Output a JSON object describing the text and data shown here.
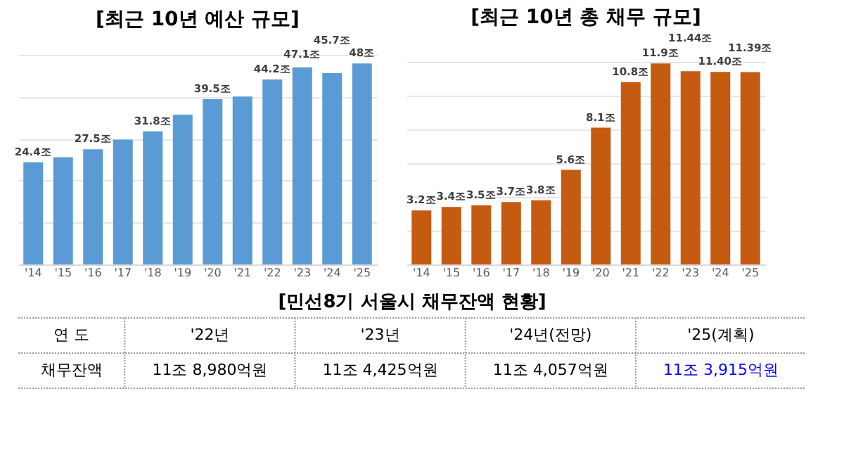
{
  "chart_data": [
    {
      "type": "bar",
      "title": "[최근 10년 예산 규모]",
      "categories": [
        "'14",
        "'15",
        "'16",
        "'17",
        "'18",
        "'19",
        "'20",
        "'21",
        "'22",
        "'23",
        "'24",
        "'25"
      ],
      "values": [
        24.4,
        25.6,
        27.5,
        29.8,
        31.8,
        35.8,
        39.5,
        40.1,
        44.2,
        47.1,
        45.7,
        48
      ],
      "value_labels": [
        "24.4조",
        null,
        "27.5조",
        null,
        "31.8조",
        null,
        "39.5조",
        null,
        "44.2조",
        "47.1조",
        "45.7조",
        "48조"
      ],
      "color": "#5b9bd5",
      "grid": "y",
      "tick_labels": "x"
    },
    {
      "type": "bar",
      "title": "[최근 10년 총 채무 규모]",
      "categories": [
        "'14",
        "'15",
        "'16",
        "'17",
        "'18",
        "'19",
        "'20",
        "'21",
        "'22",
        "'23",
        "'24",
        "'25"
      ],
      "values": [
        3.2,
        3.4,
        3.5,
        3.7,
        3.8,
        5.6,
        8.1,
        10.8,
        11.9,
        11.44,
        11.4,
        11.39
      ],
      "value_labels": [
        "3.2조",
        "3.4조",
        "3.5조",
        "3.7조",
        "3.8조",
        "5.6조",
        "8.1조",
        "10.8조",
        "11.9조",
        "11.44조",
        "11.40조",
        "11.39조"
      ],
      "color": "#c55a11",
      "grid": "y",
      "tick_labels": "x"
    },
    {
      "type": "heatmap",
      "title": "[민선8기 서울시 채무잔액 현황]",
      "xlabel": "연    도",
      "categories": [
        "'22년",
        "'23년",
        "'24년(전망)",
        "'25(계획)"
      ],
      "y_categories": [
        "채무잔액"
      ],
      "cells": [
        [
          null,
          null,
          null,
          null
        ]
      ],
      "cell_labels": [
        [
          "11조 8,980억원",
          "11조 4,425억원",
          "11조 4,057억원",
          "11조 3,915억원"
        ]
      ],
      "colors": [
        null,
        null,
        null,
        "#0000ff"
      ]
    }
  ]
}
